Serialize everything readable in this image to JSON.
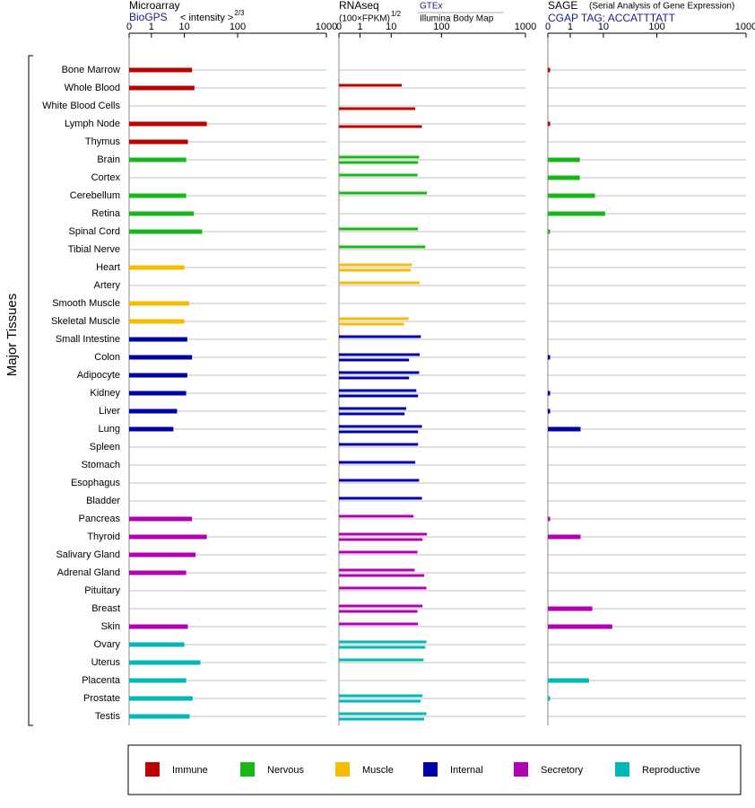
{
  "chart_data": {
    "type": "bar",
    "ylabel": "Major Tissues",
    "grid": true,
    "groups": [
      {
        "name": "Immune",
        "color": "#c00000",
        "tissues": [
          "Bone Marrow",
          "Whole Blood",
          "White Blood Cells",
          "Lymph Node",
          "Thymus"
        ]
      },
      {
        "name": "Nervous",
        "color": "#16b816",
        "tissues": [
          "Brain",
          "Cortex",
          "Cerebellum",
          "Retina",
          "Spinal Cord",
          "Tibial Nerve"
        ]
      },
      {
        "name": "Muscle",
        "color": "#f7bc00",
        "tissues": [
          "Heart",
          "Artery",
          "Smooth Muscle",
          "Skeletal Muscle"
        ]
      },
      {
        "name": "Internal",
        "color": "#0000a8",
        "tissues": [
          "Small Intestine",
          "Colon",
          "Adipocyte",
          "Kidney",
          "Liver",
          "Lung",
          "Spleen",
          "Stomach",
          "Esophagus",
          "Bladder"
        ]
      },
      {
        "name": "Secretory",
        "color": "#b400b4",
        "tissues": [
          "Pancreas",
          "Thyroid",
          "Salivary Gland",
          "Adrenal Gland",
          "Pituitary",
          "Breast",
          "Skin"
        ]
      },
      {
        "name": "Reproductive",
        "color": "#00b8b8",
        "tissues": [
          "Ovary",
          "Uterus",
          "Placenta",
          "Prostate",
          "Testis"
        ]
      }
    ],
    "panels": [
      {
        "title": "Microarray",
        "unit": "< intensity >",
        "unit_exp": "2/3",
        "xlim": [
          0,
          1000
        ],
        "xticks": [
          0,
          1,
          10,
          100,
          1000
        ],
        "series": [
          {
            "name": "BioGPS",
            "values": [
              23,
              27,
              null,
              48,
              16,
              13,
              null,
              13,
              26,
              40,
              null,
              10,
              null,
              18,
              10,
              15,
              23,
              15,
              13,
              8,
              7,
              null,
              null,
              null,
              null,
              23,
              48,
              29,
              13,
              null,
              null,
              16,
              10,
              37,
              13,
              24,
              19
            ]
          }
        ]
      },
      {
        "title": "RNAseq",
        "unit": "(100×FPKM)",
        "unit_exp": "1/2",
        "xlim": [
          0,
          1000
        ],
        "xticks": [
          0,
          1,
          10,
          100,
          1000
        ],
        "series": [
          {
            "name": "GTEx",
            "values": [
              null,
              29,
              null,
              null,
              null,
              60,
              57,
              74,
              null,
              58,
              71,
              47,
              61,
              null,
              41,
              63,
              61,
              60,
              55,
              37,
              65,
              58,
              53,
              60,
              65,
              50,
              74,
              57,
              52,
              73,
              66,
              58,
              73,
              68,
              null,
              66,
              73
            ]
          },
          {
            "name": "Illumina Body Map",
            "values": [
              null,
              null,
              53,
              65,
              null,
              58,
              null,
              null,
              null,
              null,
              null,
              45,
              null,
              null,
              33,
              null,
              42,
              42,
              58,
              34,
              58,
              null,
              null,
              null,
              null,
              null,
              66,
              null,
              69,
              null,
              57,
              null,
              71,
              null,
              null,
              63,
              69
            ]
          }
        ]
      },
      {
        "title": "SAGE",
        "subtitle": "(Serial Analysis of Gene Expression)",
        "xlim": [
          0,
          1000
        ],
        "xticks": [
          0,
          1,
          10,
          100,
          1000
        ],
        "series": [
          {
            "name": "CGAP TAG: ACCATTTATT",
            "values": [
              0.1,
              null,
              null,
              0.1,
              null,
              3.6,
              3.6,
              7.7,
              13,
              0.1,
              null,
              null,
              null,
              null,
              null,
              null,
              0.1,
              null,
              0.1,
              0.1,
              3.8,
              null,
              null,
              null,
              null,
              0.1,
              3.8,
              null,
              null,
              null,
              7,
              25,
              null,
              null,
              6.1,
              0.1,
              null
            ]
          }
        ]
      }
    ]
  }
}
